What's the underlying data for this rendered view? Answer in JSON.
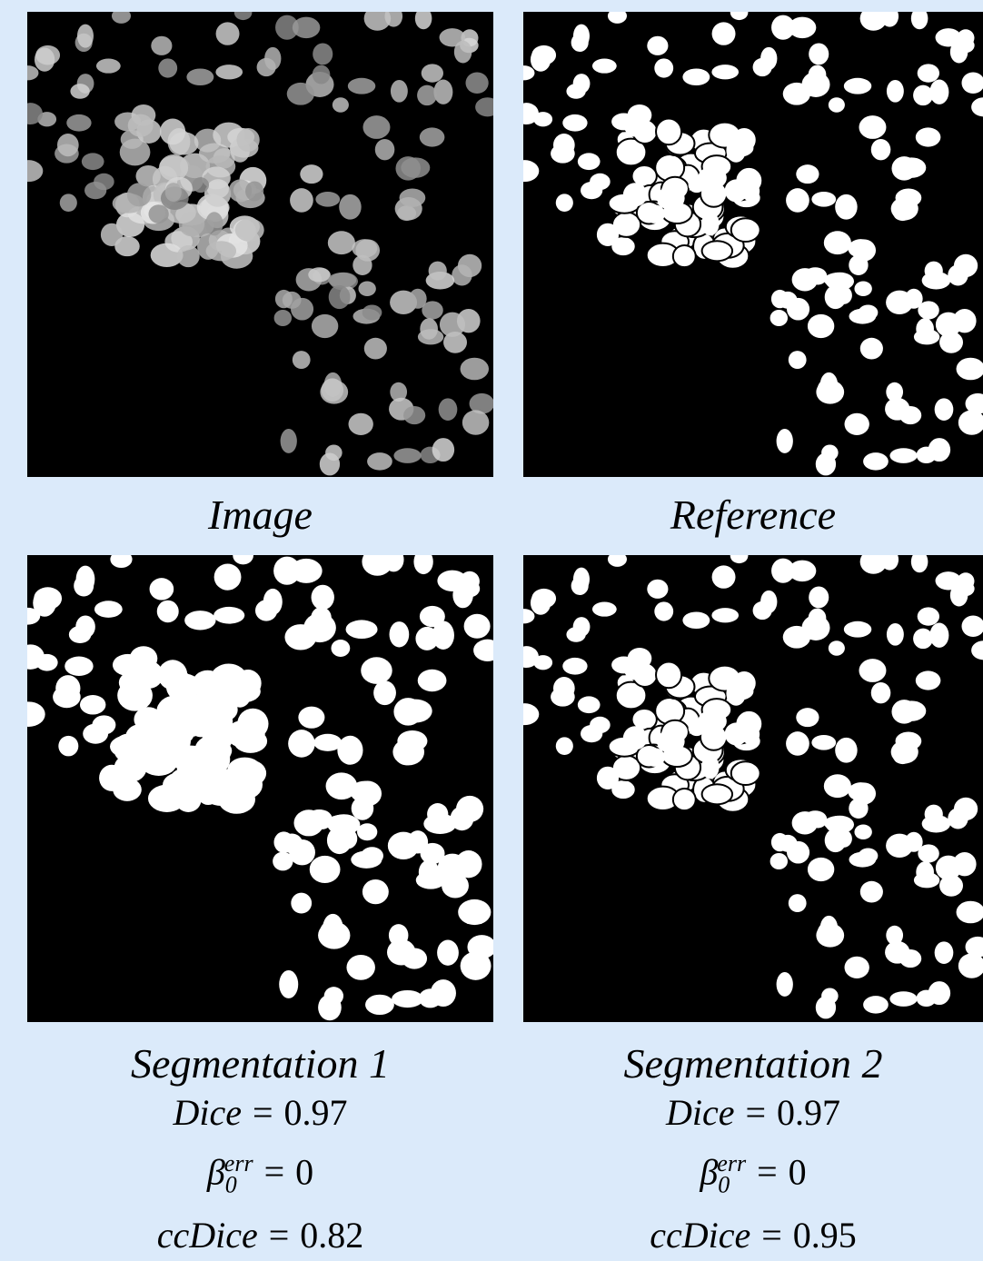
{
  "panels": [
    {
      "caption": "Image"
    },
    {
      "caption": "Reference"
    },
    {
      "caption": "Segmentation 1",
      "metrics": [
        {
          "symbol": "Dice",
          "relation": "=",
          "value": 0.97
        },
        {
          "symbol": "β",
          "sub": "0",
          "sup": "err",
          "relation": "=",
          "value": 0
        },
        {
          "symbol": "ccDice",
          "relation": "=",
          "value": 0.82
        }
      ]
    },
    {
      "caption": "Segmentation 2",
      "metrics": [
        {
          "symbol": "Dice",
          "relation": "=",
          "value": 0.97
        },
        {
          "symbol": "β",
          "sub": "0",
          "sup": "err",
          "relation": "=",
          "value": 0
        },
        {
          "symbol": "ccDice",
          "relation": "=",
          "value": 0.95
        }
      ]
    }
  ]
}
